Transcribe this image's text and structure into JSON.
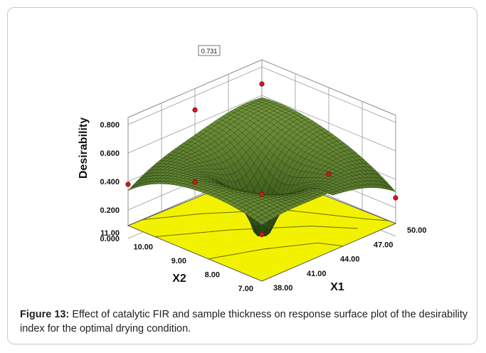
{
  "caption": {
    "label": "Figure 13:",
    "text": "Effect of catalytic FIR and sample thickness on response surface plot of the desirability index for the optimal drying condition."
  },
  "colors": {
    "surface_high": "#7a9a3a",
    "surface_low": "#1e3a0c",
    "floor": "#f2f200",
    "points": "#cc1a1a",
    "grid": "#9a9a9a"
  },
  "chart_data": {
    "type": "surface3d",
    "zlabel": "Desirability",
    "xlabel": "X1",
    "ylabel": "X2",
    "x_ticks": [
      "38.00",
      "41.00",
      "44.00",
      "47.00",
      "50.00"
    ],
    "y_ticks": [
      "7.00",
      "8.00",
      "9.00",
      "10.00",
      "11.00"
    ],
    "z_ticks": [
      "0.000",
      "0.200",
      "0.400",
      "0.600",
      "0.800"
    ],
    "xlim": [
      38,
      50
    ],
    "ylim": [
      7,
      11
    ],
    "zlim": [
      0,
      0.8
    ],
    "annotation": "0.731",
    "design_points": [
      {
        "x": 38,
        "y": 11,
        "z": 0.38
      },
      {
        "x": 38,
        "y": 9,
        "z": 0.59
      },
      {
        "x": 44,
        "y": 11,
        "z": 0.7
      },
      {
        "x": 41,
        "y": 8,
        "z": 0.5
      },
      {
        "x": 50,
        "y": 11,
        "z": 0.68
      },
      {
        "x": 47,
        "y": 8,
        "z": 0.44
      },
      {
        "x": 50,
        "y": 7,
        "z": 0.27
      },
      {
        "x": 44,
        "y": 9,
        "z": 0.02
      }
    ]
  }
}
